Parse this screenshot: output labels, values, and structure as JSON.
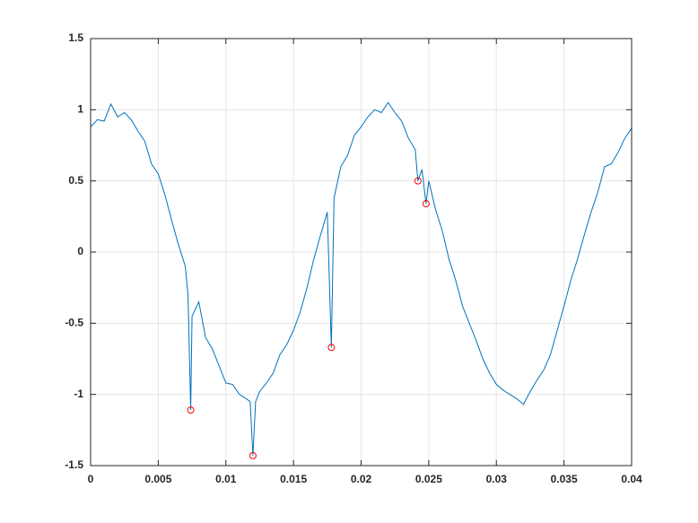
{
  "chart_data": {
    "type": "line",
    "x": [
      0,
      0.0005,
      0.001,
      0.0015,
      0.002,
      0.0025,
      0.003,
      0.0035,
      0.004,
      0.0045,
      0.005,
      0.0055,
      0.006,
      0.0065,
      0.007,
      0.0072,
      0.0074,
      0.0075,
      0.008,
      0.0085,
      0.009,
      0.0095,
      0.01,
      0.0105,
      0.011,
      0.0115,
      0.0118,
      0.012,
      0.0122,
      0.0125,
      0.013,
      0.0135,
      0.014,
      0.0145,
      0.015,
      0.0155,
      0.016,
      0.0165,
      0.017,
      0.0175,
      0.0178,
      0.018,
      0.0185,
      0.019,
      0.0195,
      0.02,
      0.0205,
      0.021,
      0.0215,
      0.022,
      0.0225,
      0.023,
      0.0235,
      0.024,
      0.0242,
      0.0245,
      0.0248,
      0.025,
      0.0255,
      0.026,
      0.0265,
      0.027,
      0.0275,
      0.028,
      0.0285,
      0.029,
      0.0295,
      0.03,
      0.0305,
      0.031,
      0.0315,
      0.032,
      0.0325,
      0.033,
      0.0335,
      0.034,
      0.0345,
      0.035,
      0.0355,
      0.036,
      0.0365,
      0.037,
      0.0375,
      0.038,
      0.0385,
      0.039,
      0.0395,
      0.04
    ],
    "series": [
      {
        "color": "#0072bd",
        "values": [
          0.88,
          0.93,
          0.92,
          1.04,
          0.95,
          0.98,
          0.93,
          0.85,
          0.78,
          0.62,
          0.55,
          0.4,
          0.22,
          0.05,
          -0.1,
          -0.3,
          -1.11,
          -0.45,
          -0.35,
          -0.6,
          -0.68,
          -0.8,
          -0.92,
          -0.93,
          -1.0,
          -1.03,
          -1.05,
          -1.43,
          -1.05,
          -0.98,
          -0.92,
          -0.85,
          -0.72,
          -0.65,
          -0.55,
          -0.42,
          -0.25,
          -0.05,
          0.12,
          0.28,
          -0.67,
          0.38,
          0.6,
          0.68,
          0.82,
          0.88,
          0.95,
          1.0,
          0.98,
          1.05,
          0.98,
          0.92,
          0.8,
          0.72,
          0.5,
          0.58,
          0.34,
          0.5,
          0.3,
          0.15,
          -0.05,
          -0.2,
          -0.38,
          -0.5,
          -0.62,
          -0.75,
          -0.85,
          -0.93,
          -0.97,
          -1.0,
          -1.03,
          -1.07,
          -0.98,
          -0.9,
          -0.83,
          -0.72,
          -0.55,
          -0.38,
          -0.2,
          -0.05,
          0.12,
          0.28,
          0.42,
          0.6,
          0.62,
          0.7,
          0.8,
          0.87
        ]
      }
    ],
    "markers": {
      "color": "#ff0000",
      "x": [
        0.0074,
        0.012,
        0.0178,
        0.0242,
        0.0248
      ],
      "values": [
        -1.11,
        -1.43,
        -0.67,
        0.5,
        0.34
      ]
    },
    "xlim": [
      0,
      0.04
    ],
    "xticks": [
      0,
      0.005,
      0.01,
      0.015,
      0.02,
      0.025,
      0.03,
      0.035,
      0.04
    ],
    "ylim": [
      -1.5,
      1.5
    ],
    "yticks": [
      -1.5,
      -1,
      -0.5,
      0,
      0.5,
      1,
      1.5
    ],
    "grid": true
  }
}
